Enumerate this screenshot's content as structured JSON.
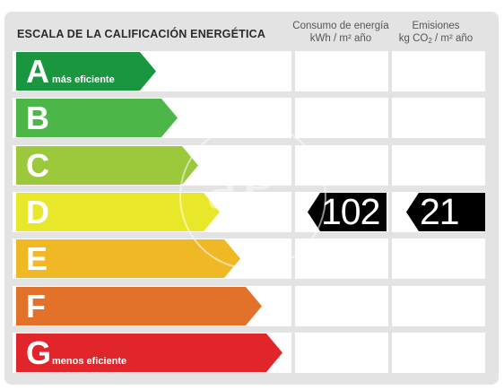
{
  "header": {
    "title": "ESCALA DE LA CALIFICACIÓN ENERGÉTICA",
    "consumo_label_line1": "Consumo de energía",
    "consumo_label_line2": "kWh / m² año",
    "emisiones_label_line1": "Emisiones",
    "emisiones_label_line2_prefix": "kg CO",
    "emisiones_label_line2_sub": "2",
    "emisiones_label_line2_suffix": " / m² año"
  },
  "ratings": [
    {
      "letter": "A",
      "sublabel": "más eficiente",
      "color": "#1a9640"
    },
    {
      "letter": "B",
      "sublabel": "",
      "color": "#4cb748"
    },
    {
      "letter": "C",
      "sublabel": "",
      "color": "#9bc93b"
    },
    {
      "letter": "D",
      "sublabel": "",
      "color": "#e9e72a"
    },
    {
      "letter": "E",
      "sublabel": "",
      "color": "#f0b824"
    },
    {
      "letter": "F",
      "sublabel": "",
      "color": "#e2712a"
    },
    {
      "letter": "G",
      "sublabel": "menos eficiente",
      "color": "#e1262b"
    }
  ],
  "result": {
    "rating_letter": "D",
    "consumo_value": "102",
    "emisiones_value": "21",
    "tag_color": "#000000"
  },
  "watermark": {
    "text": "aP",
    "icon": "logo-watermark-icon"
  }
}
